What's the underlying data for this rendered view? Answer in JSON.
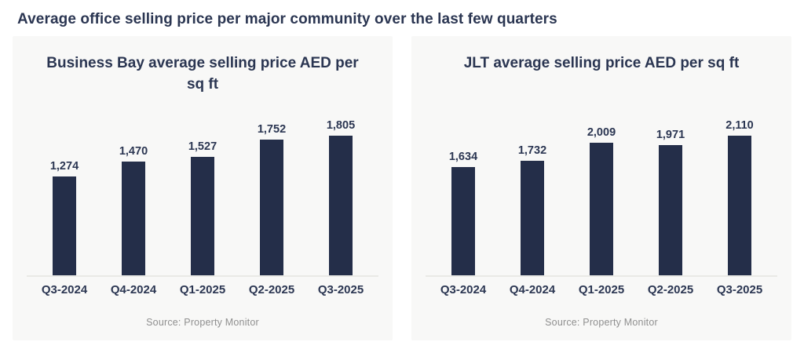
{
  "page": {
    "title": "Average office selling price per major community over the last few quarters"
  },
  "colors": {
    "bar": "#242e49",
    "heading_text": "#2b3652",
    "source_text": "#8f8f8f",
    "panel_background": "#f8f8f7",
    "axis_line": "#e9e9e6"
  },
  "chart_data": [
    {
      "type": "bar",
      "title": "Business Bay average selling price AED per sq ft",
      "categories": [
        "Q3-2024",
        "Q4-2024",
        "Q1-2025",
        "Q2-2025",
        "Q3-2025"
      ],
      "values": [
        1274,
        1470,
        1527,
        1752,
        1805
      ],
      "value_labels": [
        "1,274",
        "1,470",
        "1,527",
        "1,752",
        "1,805"
      ],
      "xlabel": "",
      "ylabel": "AED per sq ft",
      "ylim": [
        0,
        1805
      ],
      "grid": false,
      "legend": "none",
      "data_labels": "above bars",
      "source": "Source: Property Monitor"
    },
    {
      "type": "bar",
      "title": "JLT average selling price AED per sq ft",
      "categories": [
        "Q3-2024",
        "Q4-2024",
        "Q1-2025",
        "Q2-2025",
        "Q3-2025"
      ],
      "values": [
        1634,
        1732,
        2009,
        1971,
        2110
      ],
      "value_labels": [
        "1,634",
        "1,732",
        "2,009",
        "1,971",
        "2,110"
      ],
      "xlabel": "",
      "ylabel": "AED per sq ft",
      "ylim": [
        0,
        2110
      ],
      "grid": false,
      "legend": "none",
      "data_labels": "above bars",
      "source": "Source: Property Monitor"
    }
  ]
}
